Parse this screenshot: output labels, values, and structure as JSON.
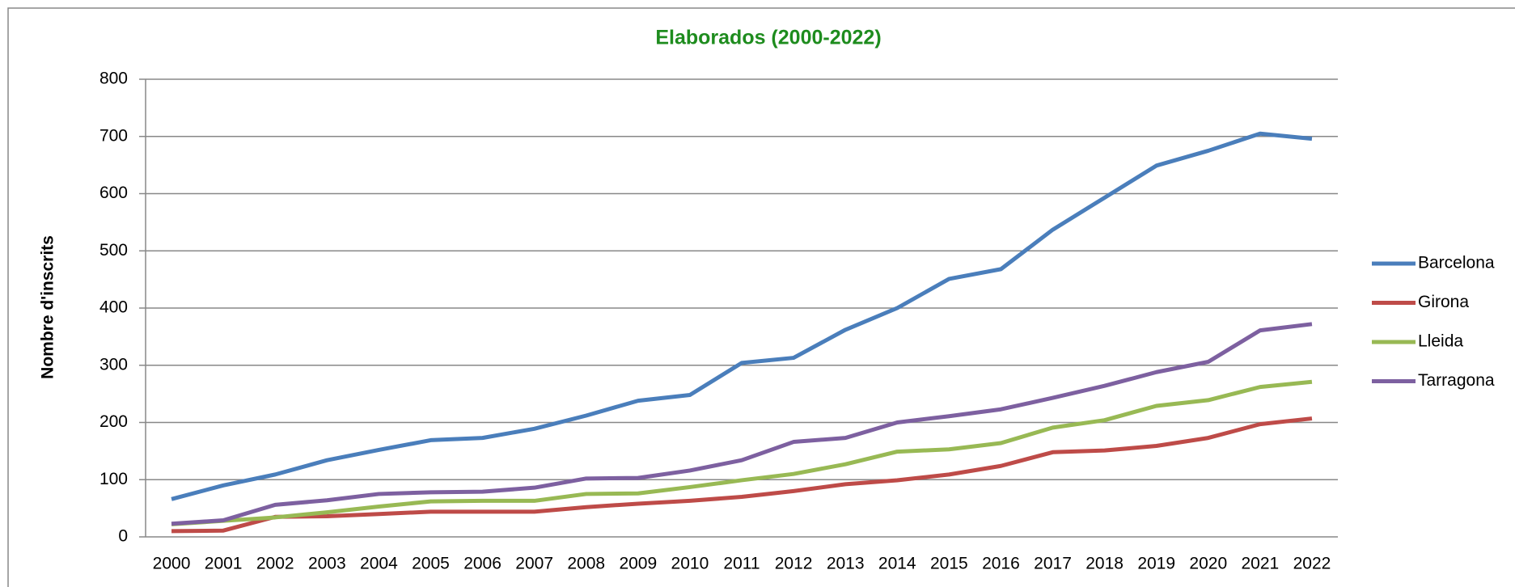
{
  "chart_data": {
    "type": "line",
    "title": "Elaborados (2000-2022)",
    "y_label": "Nombre d'inscrits",
    "categories": [
      "2000",
      "2001",
      "2002",
      "2003",
      "2004",
      "2005",
      "2006",
      "2007",
      "2008",
      "2009",
      "2010",
      "2011",
      "2012",
      "2013",
      "2014",
      "2015",
      "2016",
      "2017",
      "2018",
      "2019",
      "2020",
      "2021",
      "2022"
    ],
    "series": [
      {
        "name": "Barcelona",
        "color": "#4a7ebb",
        "values": [
          66,
          90,
          109,
          134,
          152,
          169,
          173,
          189,
          212,
          238,
          248,
          304,
          313,
          362,
          400,
          451,
          468,
          537,
          593,
          649,
          675,
          705,
          696
        ]
      },
      {
        "name": "Girona",
        "color": "#be4b48",
        "values": [
          10,
          11,
          35,
          36,
          40,
          44,
          44,
          44,
          52,
          58,
          63,
          70,
          80,
          92,
          99,
          109,
          124,
          148,
          151,
          159,
          173,
          197,
          207
        ]
      },
      {
        "name": "Lleida",
        "color": "#98b954",
        "values": [
          22,
          28,
          34,
          43,
          53,
          62,
          63,
          63,
          75,
          76,
          87,
          99,
          110,
          127,
          149,
          153,
          164,
          191,
          204,
          229,
          239,
          262,
          271
        ]
      },
      {
        "name": "Tarragona",
        "color": "#7d60a0",
        "values": [
          23,
          29,
          56,
          64,
          75,
          78,
          79,
          86,
          102,
          103,
          116,
          134,
          166,
          173,
          200,
          211,
          223,
          243,
          264,
          288,
          306,
          361,
          372
        ]
      }
    ],
    "ylim": [
      0,
      800
    ],
    "yticks": [
      0,
      100,
      200,
      300,
      400,
      500,
      600,
      700,
      800
    ],
    "grid": true,
    "legend": "right",
    "title_color": "#1e8c1e"
  }
}
